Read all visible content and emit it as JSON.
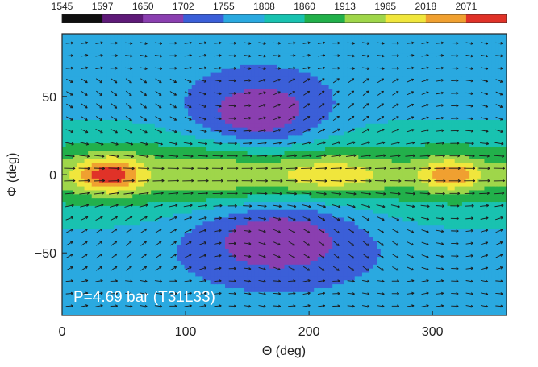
{
  "chart_data": {
    "type": "heatmap",
    "title": "",
    "xlabel": "Θ (deg)",
    "ylabel": "Φ (deg)",
    "annotation": "P=4.69 bar (T31L33)",
    "xlim": [
      0,
      360
    ],
    "ylim": [
      -90,
      90
    ],
    "x_ticks": [
      "0",
      "100",
      "200",
      "300"
    ],
    "x_tick_values": [
      0,
      100,
      200,
      300
    ],
    "y_ticks": [
      "50",
      "0",
      "−50"
    ],
    "y_tick_values": [
      50,
      0,
      -50
    ],
    "colorbar": {
      "labels": [
        "1545",
        "1597",
        "1650",
        "1702",
        "1755",
        "1808",
        "1860",
        "1913",
        "1965",
        "2018",
        "2071"
      ],
      "values": [
        1545,
        1597,
        1650,
        1702,
        1755,
        1808,
        1860,
        1913,
        1965,
        2018,
        2071
      ],
      "colors": [
        "#101010",
        "#5e1a78",
        "#8a3fb0",
        "#3b5fd8",
        "#2aa9e0",
        "#19c2b0",
        "#22b04b",
        "#9fd64a",
        "#f0e63c",
        "#f0a030",
        "#e03228"
      ]
    },
    "field_blobs": [
      {
        "theta": 160,
        "phi": 40,
        "value": 1650,
        "sigma_theta": 38,
        "sigma_phi": 16
      },
      {
        "theta": 175,
        "phi": -42,
        "value": 1650,
        "sigma_theta": 50,
        "sigma_phi": 18
      },
      {
        "theta": 40,
        "phi": 0,
        "value": 2071,
        "sigma_theta": 22,
        "sigma_phi": 8
      },
      {
        "theta": 215,
        "phi": 0,
        "value": 1965,
        "sigma_theta": 40,
        "sigma_phi": 8
      },
      {
        "theta": 315,
        "phi": 0,
        "value": 2018,
        "sigma_theta": 18,
        "sigma_phi": 7
      },
      {
        "theta": 120,
        "phi": 0,
        "value": 1913,
        "sigma_theta": 35,
        "sigma_phi": 10
      }
    ],
    "background_value": 1755,
    "equatorial_band_value": 1860
  }
}
